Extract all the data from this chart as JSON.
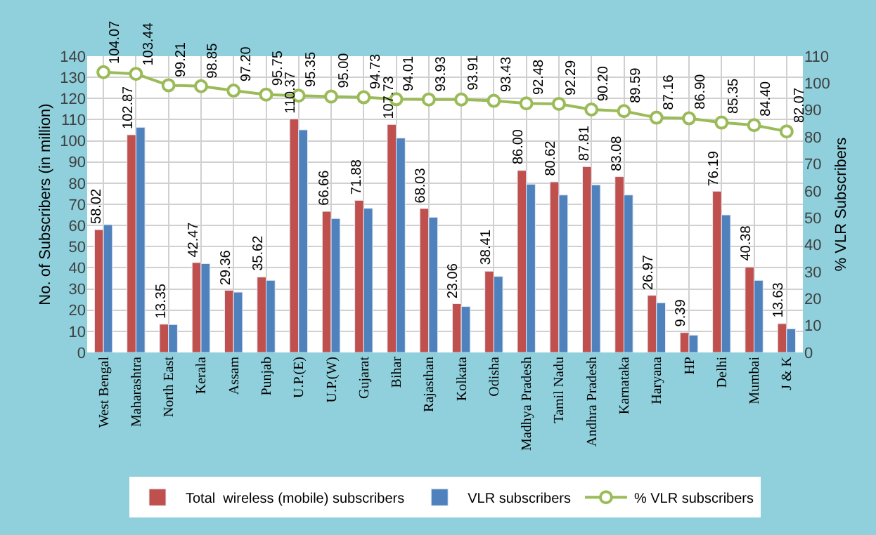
{
  "chart_data": {
    "type": "bar",
    "xlabel": null,
    "ylabel": "No. of Subscribers (in million)",
    "y2label": "% VLR Subscribers",
    "categories": [
      "West Bengal",
      "Maharashtra",
      "North East",
      "Kerala",
      "Assam",
      "Punjab",
      "U.P.(E)",
      "U.P.(W)",
      "Gujarat",
      "Bihar",
      "Rajasthan",
      "Kolkata",
      "Odisha",
      "Madhya Pradesh",
      "Tamil Nadu",
      "Andhra Pradesh",
      "Karnataka",
      "Haryana",
      "HP",
      "Delhi",
      "Mumbai",
      "J & K"
    ],
    "series": [
      {
        "name": "Total  wireless (mobile) subscribers",
        "color": "#c0504d",
        "values": [
          58.02,
          102.87,
          13.35,
          42.47,
          29.36,
          35.62,
          110.37,
          66.66,
          71.88,
          107.73,
          68.03,
          23.06,
          38.41,
          86.0,
          80.62,
          87.81,
          83.08,
          26.97,
          9.39,
          76.19,
          40.38,
          13.63
        ],
        "value_labels": [
          "58.02",
          "102.87",
          "13.35",
          "42.47",
          "29.36",
          "35.62",
          "110.37",
          "66.66",
          "71.88",
          "107.73",
          "68.03",
          "23.06",
          "38.41",
          "86.00",
          "80.62",
          "87.81",
          "83.08",
          "26.97",
          "9.39",
          "76.19",
          "40.38",
          "13.63"
        ]
      },
      {
        "name": "VLR subscribers",
        "color": "#4f81bd",
        "values": [
          60.4,
          106.4,
          13.2,
          42.0,
          28.5,
          34.1,
          105.2,
          63.3,
          68.1,
          101.3,
          63.9,
          21.7,
          35.9,
          79.5,
          74.4,
          79.2,
          74.4,
          23.5,
          8.2,
          65.0,
          34.1,
          11.2
        ]
      },
      {
        "name": "% VLR subscribers",
        "type": "line",
        "axis": "y2",
        "color": "#9bbb59",
        "marker": "circle",
        "values": [
          104.07,
          103.44,
          99.21,
          98.85,
          97.2,
          95.75,
          95.35,
          95.0,
          94.73,
          94.01,
          93.93,
          93.91,
          93.43,
          92.48,
          92.29,
          90.2,
          89.59,
          87.16,
          86.9,
          85.35,
          84.4,
          82.07
        ],
        "value_labels": [
          "104.07",
          "103.44",
          "99.21",
          "98.85",
          "97.20",
          "95.75",
          "95.35",
          "95.00",
          "94.73",
          "94.01",
          "93.93",
          "93.91",
          "93.43",
          "92.48",
          "92.29",
          "90.20",
          "89.59",
          "87.16",
          "86.90",
          "85.35",
          "84.40",
          "82.07"
        ]
      }
    ],
    "ylim": [
      0,
      140
    ],
    "yticks": [
      0,
      10,
      20,
      30,
      40,
      50,
      60,
      70,
      80,
      90,
      100,
      110,
      120,
      130,
      140
    ],
    "y2lim": [
      0,
      110
    ],
    "y2ticks": [
      0,
      10,
      20,
      30,
      40,
      50,
      60,
      70,
      80,
      90,
      100,
      110
    ],
    "grid": true,
    "legend": "bottom"
  }
}
